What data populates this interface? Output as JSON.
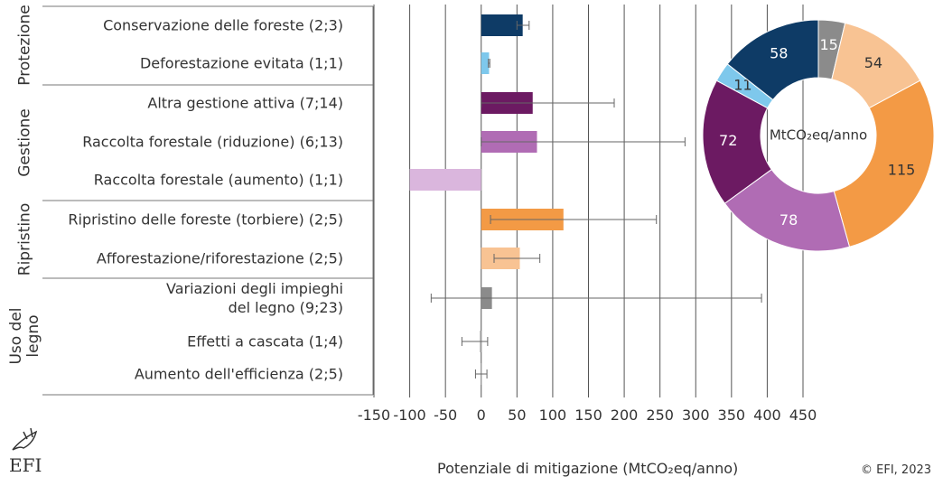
{
  "chart_data": [
    {
      "type": "bar",
      "x_label": "Potenziale di mitigazione (MtCO₂eq/anno)",
      "groups": [
        "Protezione",
        "Gestione",
        "Ripristino",
        "Uso del\nlegno"
      ],
      "categories": [
        "Conservazione delle foreste (2;3)",
        "Deforestazione evitata (1;1)",
        "Altra gestione attiva (7;14)",
        "Raccolta forestale (riduzione) (6;13)",
        "Raccolta forestale (aumento) (1;1)",
        "Ripristino delle foreste (torbiere) (2;5)",
        "Afforestazione/riforestazione (2;5)",
        "Variazioni degli impieghi\ndel legno (9;23)",
        "Effetti a cascata (1;4)",
        "Aumento dell'efficienza (2;5)"
      ],
      "values": [
        58,
        11,
        72,
        78,
        -100,
        115,
        54,
        15,
        -2,
        0
      ],
      "error_low": [
        50,
        10,
        0,
        0,
        null,
        13,
        18,
        -70,
        -27,
        -8
      ],
      "error_high": [
        67,
        12,
        186,
        285,
        null,
        245,
        82,
        392,
        9,
        8
      ],
      "colors": [
        "#0e3b66",
        "#7ec8ec",
        "#6c1a62",
        "#b06cb4",
        "#dab6dd",
        "#f39a45",
        "#f8c393",
        "#8b8b8b",
        "#b5b5b5",
        "#b5b5b5"
      ],
      "xlim": [
        -150,
        450
      ],
      "xticks": [
        -150,
        -100,
        -50,
        0,
        50,
        100,
        150,
        200,
        250,
        300,
        350,
        400,
        450
      ],
      "grid": true
    },
    {
      "type": "pie",
      "center_label": "MtCO₂eq/anno",
      "values": [
        15,
        54,
        115,
        78,
        72,
        11,
        58
      ],
      "colors": [
        "#8b8b8b",
        "#f8c393",
        "#f39a45",
        "#b06cb4",
        "#6c1a62",
        "#7ec8ec",
        "#0e3b66"
      ]
    }
  ],
  "footer": {
    "logo": "EFI",
    "copyright": "© EFI, 2023"
  }
}
